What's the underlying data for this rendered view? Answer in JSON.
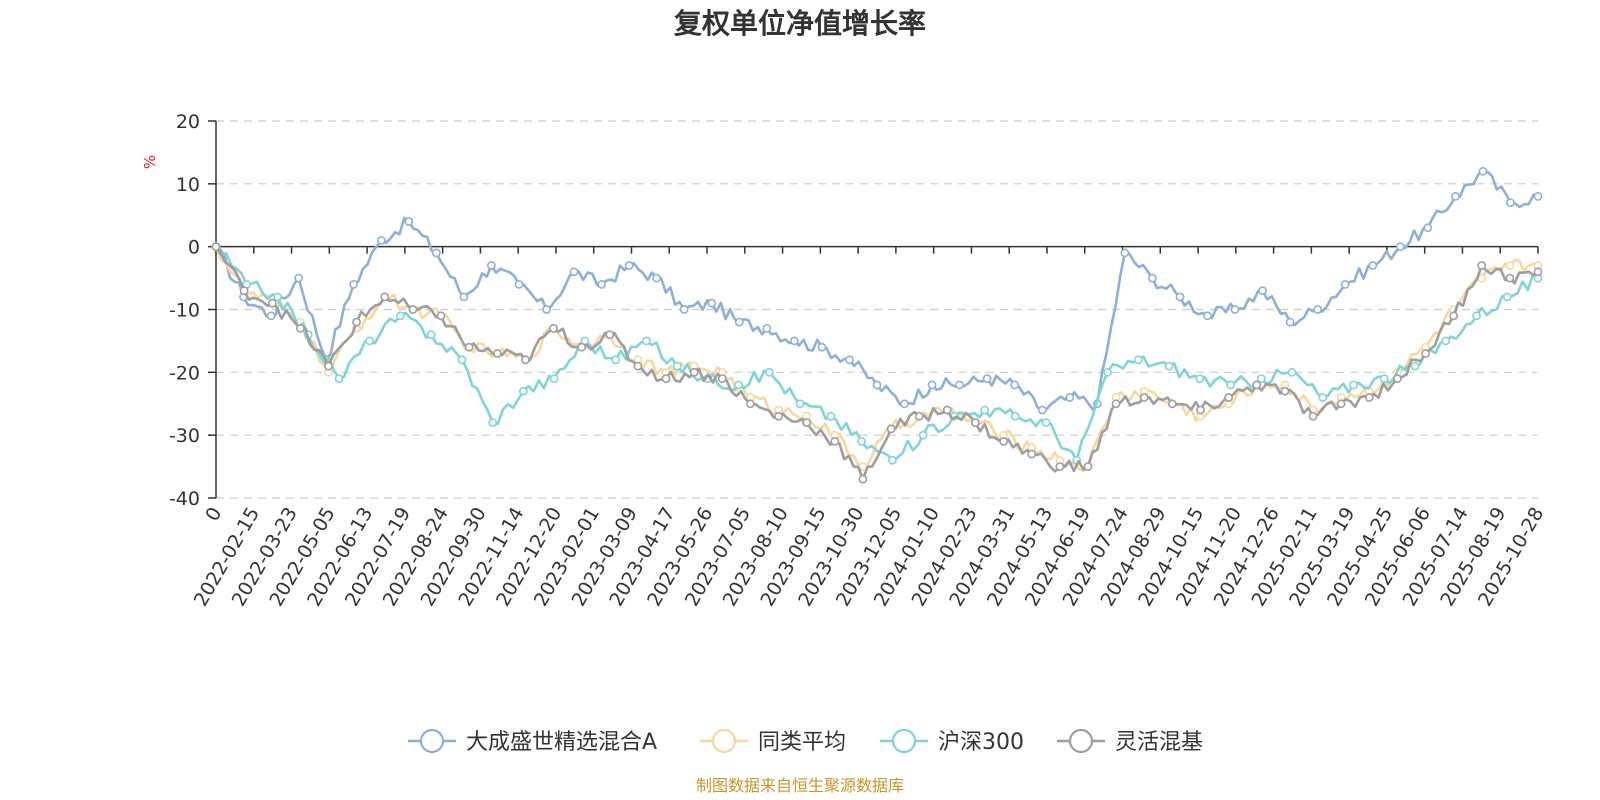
{
  "chart_data": {
    "type": "line",
    "title": "复权单位净值增长率",
    "ylabel": "%",
    "xlabel": "",
    "ylim": [
      -40,
      20
    ],
    "yticks": [
      20,
      10,
      0,
      -10,
      -20,
      -30,
      -40
    ],
    "grid": true,
    "legend_position": "bottom",
    "x_tick_labels": [
      "0",
      "2022-02-15",
      "2022-03-23",
      "2022-05-05",
      "2022-06-13",
      "2022-07-19",
      "2022-08-24",
      "2022-09-30",
      "2022-11-14",
      "2022-12-20",
      "2023-02-01",
      "2023-03-09",
      "2023-04-17",
      "2023-05-26",
      "2023-07-05",
      "2023-08-10",
      "2023-09-15",
      "2023-10-30",
      "2023-12-05",
      "2024-01-10",
      "2024-02-23",
      "2024-03-31",
      "2024-05-13",
      "2024-06-19",
      "2024-07-24",
      "2024-08-29",
      "2024-10-15",
      "2024-11-20",
      "2024-12-26",
      "2025-02-11",
      "2025-03-19",
      "2025-04-25",
      "2025-06-06",
      "2025-07-14",
      "2025-08-19",
      "2025-10-28"
    ],
    "series": [
      {
        "name": "大成盛世精选混合A",
        "color": "#8eaedb",
        "values": [
          0,
          -8,
          -11,
          -5,
          -18,
          -6,
          1,
          4,
          -1,
          -8,
          -3,
          -6,
          -10,
          -4,
          -6,
          -3,
          -5,
          -10,
          -9,
          -12,
          -13,
          -15,
          -16,
          -18,
          -22,
          -25,
          -22,
          -22,
          -21,
          -22,
          -26,
          -24,
          -25,
          -1,
          -5,
          -8,
          -11,
          -10,
          -7,
          -12,
          -10,
          -6,
          -3,
          0,
          3,
          8,
          12,
          7,
          8
        ]
      },
      {
        "name": "同类平均",
        "color": "#f8d89c",
        "values": [
          0,
          -7,
          -9,
          -12,
          -20,
          -13,
          -8,
          -10,
          -11,
          -16,
          -17,
          -18,
          -13,
          -16,
          -14,
          -18,
          -20,
          -19,
          -20,
          -24,
          -26,
          -27,
          -30,
          -35,
          -29,
          -27,
          -26,
          -28,
          -30,
          -32,
          -34,
          -35,
          -24,
          -23,
          -25,
          -27,
          -25,
          -22,
          -22,
          -26,
          -24,
          -23,
          -20,
          -16,
          -10,
          -5,
          -3,
          -3
        ]
      },
      {
        "name": "沪深300",
        "color": "#7fd4d7",
        "values": [
          0,
          -6,
          -8,
          -14,
          -21,
          -15,
          -11,
          -14,
          -18,
          -28,
          -23,
          -21,
          -15,
          -18,
          -15,
          -19,
          -21,
          -22,
          -20,
          -25,
          -27,
          -31,
          -34,
          -30,
          -27,
          -26,
          -27,
          -28,
          -34,
          -20,
          -18,
          -19,
          -21,
          -22,
          -21,
          -20,
          -24,
          -22,
          -21,
          -19,
          -15,
          -11,
          -8,
          -5
        ]
      },
      {
        "name": "灵活混基",
        "color": "#9e9e9e",
        "values": [
          0,
          -7,
          -9,
          -13,
          -19,
          -12,
          -8,
          -10,
          -11,
          -16,
          -17,
          -18,
          -13,
          -16,
          -14,
          -19,
          -21,
          -20,
          -21,
          -25,
          -27,
          -28,
          -31,
          -37,
          -29,
          -27,
          -26,
          -28,
          -31,
          -33,
          -35,
          -35,
          -25,
          -24,
          -25,
          -26,
          -24,
          -22,
          -23,
          -27,
          -25,
          -24,
          -21,
          -17,
          -11,
          -3,
          -5,
          -4
        ]
      }
    ]
  },
  "legend": {
    "items": [
      "大成盛世精选混合A",
      "同类平均",
      "沪深300",
      "灵活混基"
    ]
  },
  "source": "制图数据来自恒生聚源数据库"
}
